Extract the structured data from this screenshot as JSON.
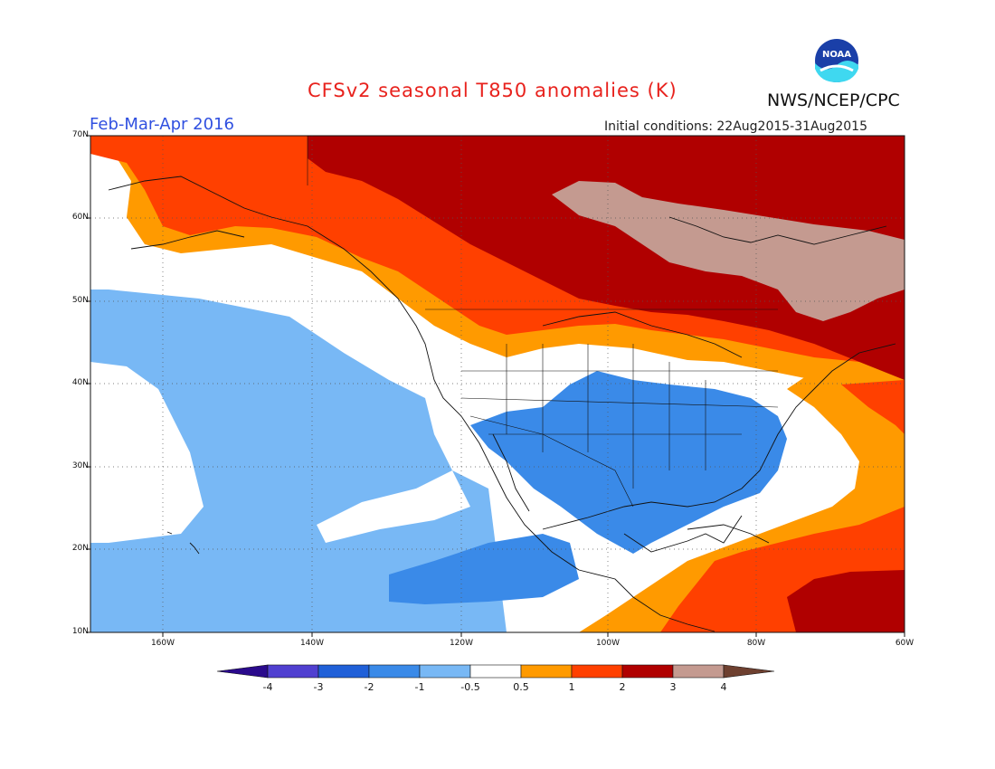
{
  "header": {
    "title": "CFSv2 seasonal T850 anomalies (K)",
    "agency": "NWS/NCEP/CPC",
    "period": "Feb-Mar-Apr 2016",
    "initial_conditions": "Initial conditions: 22Aug2015-31Aug2015",
    "logo_text": "NOAA"
  },
  "axes": {
    "lat_labels": [
      "70N",
      "60N",
      "50N",
      "40N",
      "30N",
      "20N",
      "10N"
    ],
    "lon_labels": [
      "160W",
      "140W",
      "120W",
      "100W",
      "80W",
      "60W"
    ]
  },
  "colorbar": {
    "labels": [
      "-4",
      "-3",
      "-2",
      "-1",
      "-0.5",
      "0.5",
      "1",
      "2",
      "3",
      "4"
    ],
    "colors": [
      "#2a0a8c",
      "#5040d0",
      "#2060d8",
      "#3a8ae8",
      "#78b8f5",
      "#ffffff",
      "#ff9a00",
      "#ff4000",
      "#b00000",
      "#c49a90",
      "#6e4030"
    ]
  },
  "legend_colors": {
    "strong_cold": "#3a8ae8",
    "cold": "#78b8f5",
    "neutral": "#ffffff",
    "warm_05_1": "#ff9a00",
    "warm_1_2": "#ff4000",
    "warm_2_3": "#b00000",
    "warm_3_4": "#c49a90"
  }
}
